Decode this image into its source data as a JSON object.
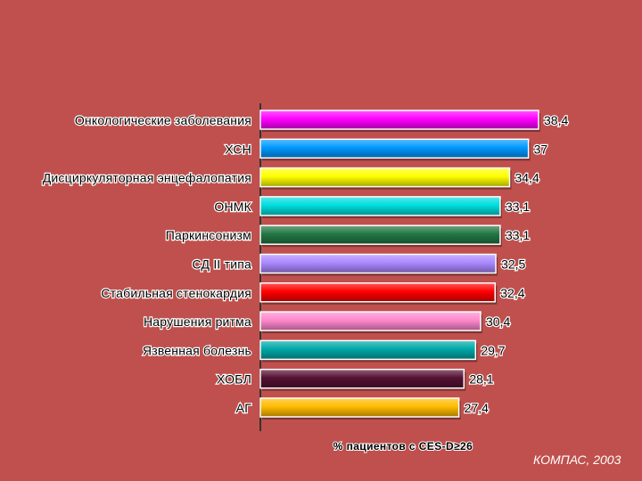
{
  "chart_data": {
    "type": "bar",
    "orientation": "horizontal",
    "categories": [
      "Онкологические заболевания",
      "ХСН",
      "Дисциркуляторная энцефалопатия",
      "ОНМК",
      "Паркинсонизм",
      "СД II типа",
      "Стабильная стенокардия",
      "Нарушения ритма",
      "Язвенная болезнь",
      "ХОБЛ",
      "АГ"
    ],
    "values": [
      38.4,
      37,
      34.4,
      33.1,
      33.1,
      32.5,
      32.4,
      30.4,
      29.7,
      28.1,
      27.4
    ],
    "value_labels": [
      "38,4",
      "37",
      "34,4",
      "33,1",
      "33,1",
      "32,5",
      "32,4",
      "30,4",
      "29,7",
      "28,1",
      "27,4"
    ],
    "colors": [
      "#ff00ff",
      "#0099ff",
      "#ffff00",
      "#00dddd",
      "#227744",
      "#aa88ff",
      "#ff0000",
      "#ff88cc",
      "#00a8a8",
      "#551133",
      "#ffbb00"
    ],
    "xlabel": "% пациентов с CES-D≥26",
    "xlim": [
      0,
      40
    ],
    "grid": false,
    "legend": "none"
  },
  "source_note": "КОМПАС, 2003",
  "colors": {
    "background": "#c0504d",
    "label_outline": "#ffffff"
  }
}
